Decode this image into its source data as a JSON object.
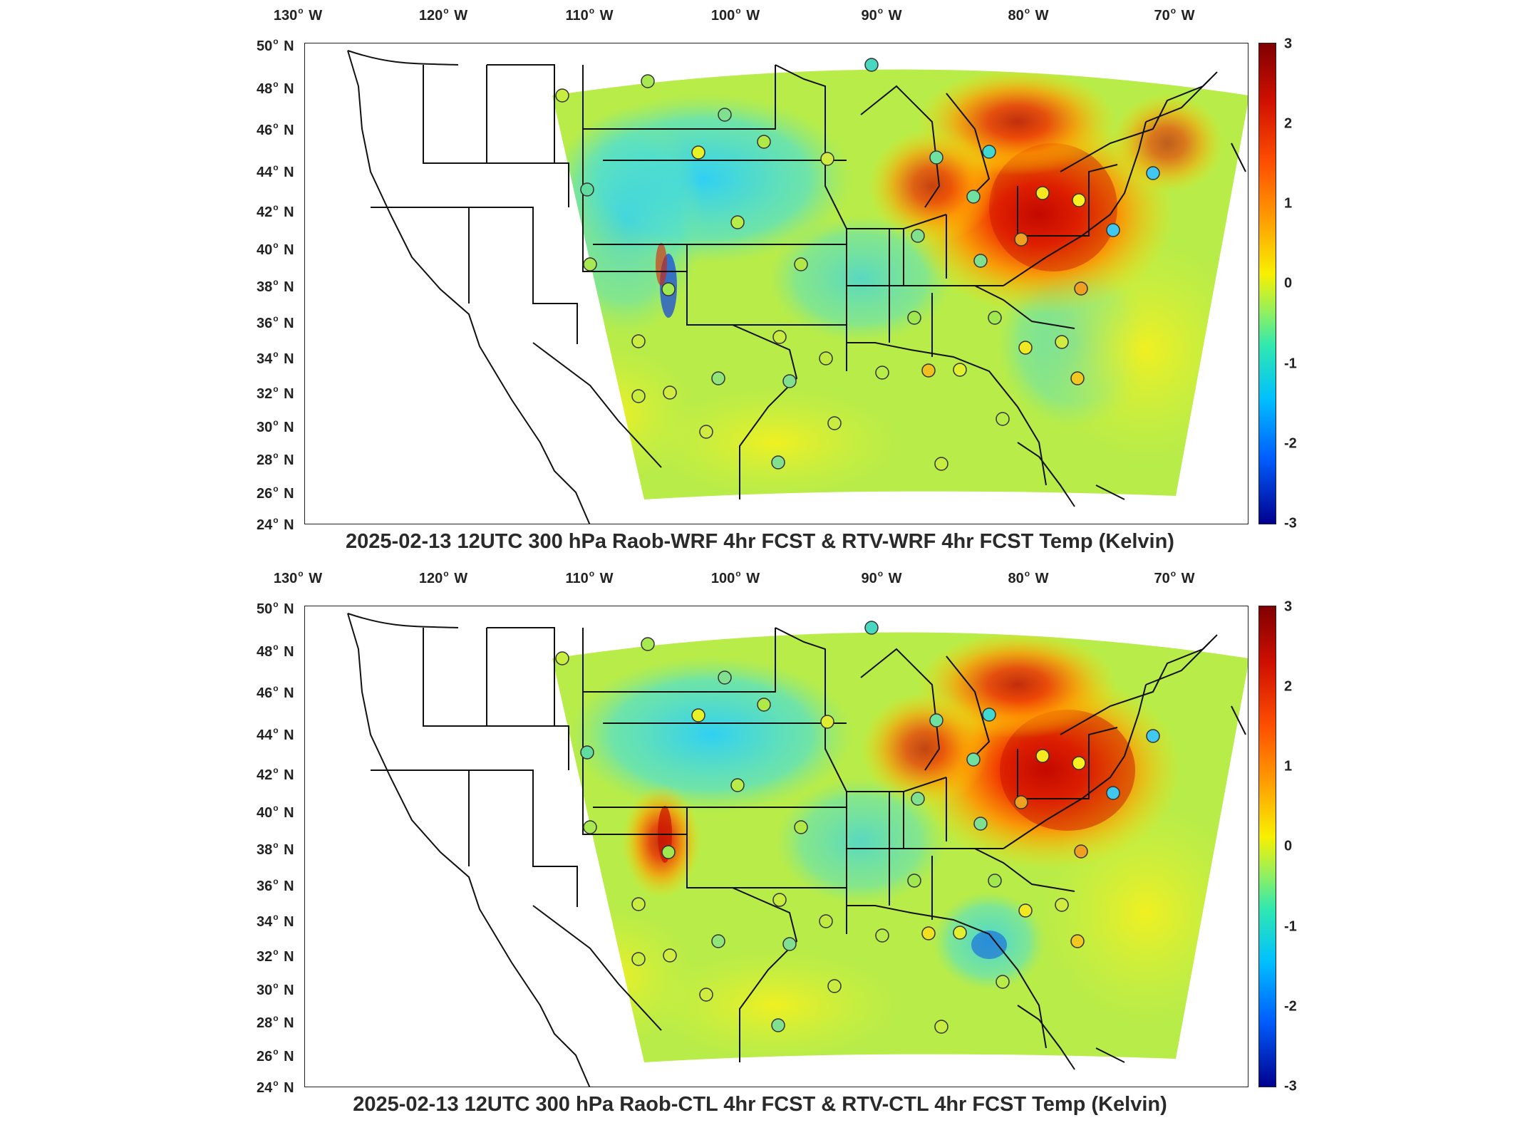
{
  "panels": [
    {
      "id": "raob-wrf",
      "title": "2025-02-13 12UTC 300 hPa Raob-WRF 4hr FCST & RTV-WRF 4hr FCST Temp (Kelvin)"
    },
    {
      "id": "raob-ctl",
      "title": "2025-02-13 12UTC 300 hPa Raob-CTL 4hr FCST & RTV-CTL 4hr FCST Temp (Kelvin)"
    }
  ],
  "longitude_labels": [
    {
      "deg": "130",
      "hemi": "W"
    },
    {
      "deg": "120",
      "hemi": "W"
    },
    {
      "deg": "110",
      "hemi": "W"
    },
    {
      "deg": "100",
      "hemi": "W"
    },
    {
      "deg": "90",
      "hemi": "W"
    },
    {
      "deg": "80",
      "hemi": "W"
    },
    {
      "deg": "70",
      "hemi": "W"
    }
  ],
  "latitude_labels": [
    {
      "deg": "50",
      "hemi": "N"
    },
    {
      "deg": "48",
      "hemi": "N"
    },
    {
      "deg": "46",
      "hemi": "N"
    },
    {
      "deg": "44",
      "hemi": "N"
    },
    {
      "deg": "42",
      "hemi": "N"
    },
    {
      "deg": "40",
      "hemi": "N"
    },
    {
      "deg": "38",
      "hemi": "N"
    },
    {
      "deg": "36",
      "hemi": "N"
    },
    {
      "deg": "34",
      "hemi": "N"
    },
    {
      "deg": "32",
      "hemi": "N"
    },
    {
      "deg": "30",
      "hemi": "N"
    },
    {
      "deg": "28",
      "hemi": "N"
    },
    {
      "deg": "26",
      "hemi": "N"
    },
    {
      "deg": "24",
      "hemi": "N"
    }
  ],
  "colorbar": {
    "ticks": [
      "3",
      "2",
      "1",
      "0",
      "-1",
      "-2",
      "-3"
    ],
    "min": -3,
    "max": 3,
    "colormap": "jet"
  },
  "colors": {
    "field_base": "#b8ec48",
    "warm_core": "#d81200",
    "cool": "#38d8f0",
    "outline": "#111111"
  }
}
